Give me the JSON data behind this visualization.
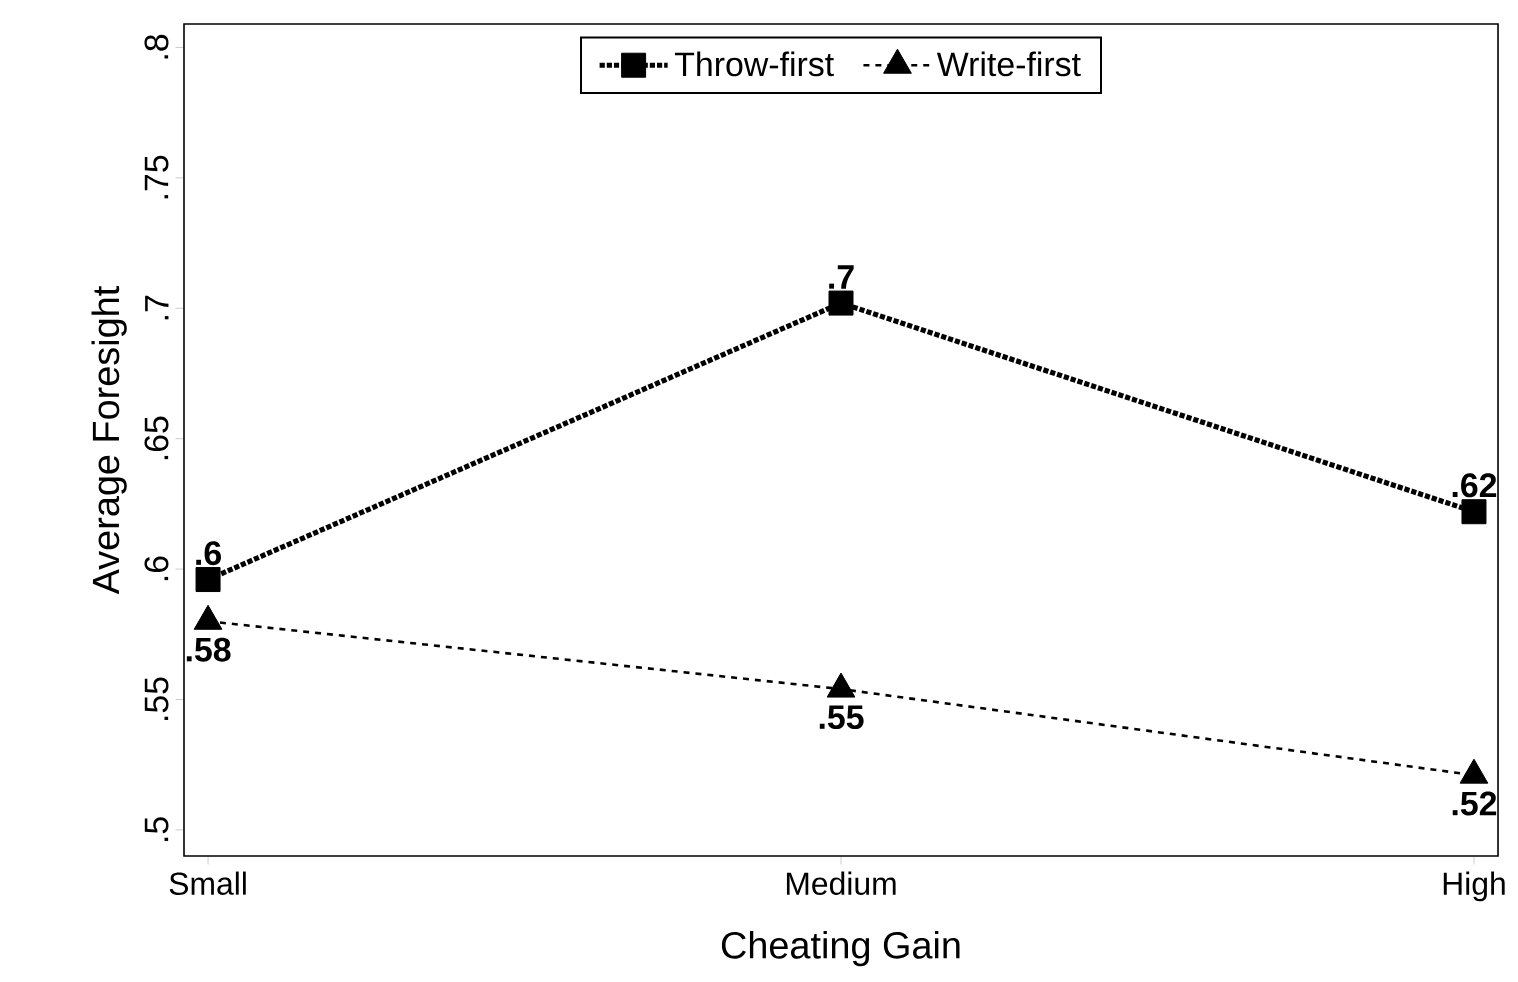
{
  "chart_data": {
    "type": "line",
    "xlabel": "Cheating Gain",
    "ylabel": "Average Foresight",
    "categories": [
      "Small",
      "Medium",
      "High"
    ],
    "series": [
      {
        "name": "Throw-first",
        "color": "#000000",
        "marker": "square",
        "line_style": "dotted",
        "values": [
          0.596,
          0.702,
          0.622
        ],
        "value_labels": [
          ".6",
          ".7",
          ".62"
        ]
      },
      {
        "name": "Write-first",
        "color": "#000000",
        "marker": "triangle",
        "line_style": "dashed",
        "values": [
          0.58,
          0.554,
          0.521
        ],
        "value_labels": [
          ".58",
          ".55",
          ".52"
        ]
      }
    ],
    "ylim": [
      0.49,
      0.809
    ],
    "yticks": [
      {
        "value": 0.5,
        "label": ".5"
      },
      {
        "value": 0.55,
        "label": ".55"
      },
      {
        "value": 0.6,
        "label": ".6"
      },
      {
        "value": 0.65,
        "label": ".65"
      },
      {
        "value": 0.7,
        "label": ".7"
      },
      {
        "value": 0.75,
        "label": ".75"
      },
      {
        "value": 0.8,
        "label": ".8"
      }
    ],
    "legend": "top",
    "grid": false
  }
}
